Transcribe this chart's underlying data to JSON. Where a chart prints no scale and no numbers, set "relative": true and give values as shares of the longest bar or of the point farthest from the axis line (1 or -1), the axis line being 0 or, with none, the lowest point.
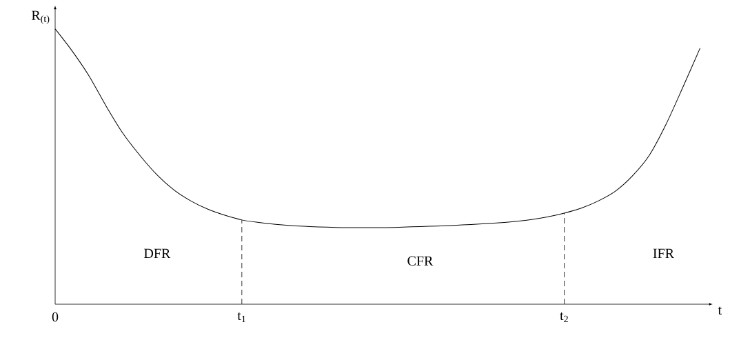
{
  "chart_data": {
    "type": "line",
    "relative": true,
    "xlabel": "t",
    "ylabel": "R$_{(t)}$",
    "categories": [
      "0",
      null,
      null,
      null,
      null,
      null,
      null,
      null,
      null,
      null,
      null,
      "t$_{1}$",
      null,
      null,
      null,
      null,
      null,
      null,
      null,
      null,
      null,
      null,
      null,
      null,
      null,
      null,
      null,
      null,
      null,
      null,
      "t$_{2}$",
      null,
      null,
      null,
      null,
      null,
      null,
      null,
      null
    ],
    "series": [
      {
        "color": "#000000",
        "values": [
          1.0,
          0.92,
          0.829,
          0.72,
          0.62,
          0.54,
          0.47,
          0.415,
          0.375,
          0.345,
          0.323,
          0.306,
          0.297,
          0.29,
          0.285,
          0.282,
          0.28,
          0.278,
          0.278,
          0.278,
          0.279,
          0.281,
          0.283,
          0.285,
          0.288,
          0.291,
          0.295,
          0.3,
          0.307,
          0.317,
          0.331,
          0.349,
          0.375,
          0.41,
          0.465,
          0.54,
          0.654,
          0.79,
          0.93
        ]
      }
    ],
    "ref_lines": [
      {
        "axis": "x",
        "value": "t$_{1}$",
        "line_style": "dashed"
      },
      {
        "axis": "x",
        "value": "t$_{2}$",
        "line_style": "dashed"
      }
    ],
    "annotations": [
      "DFR",
      "CFR",
      "IFR"
    ],
    "marker": "none",
    "line_style": "solid"
  }
}
